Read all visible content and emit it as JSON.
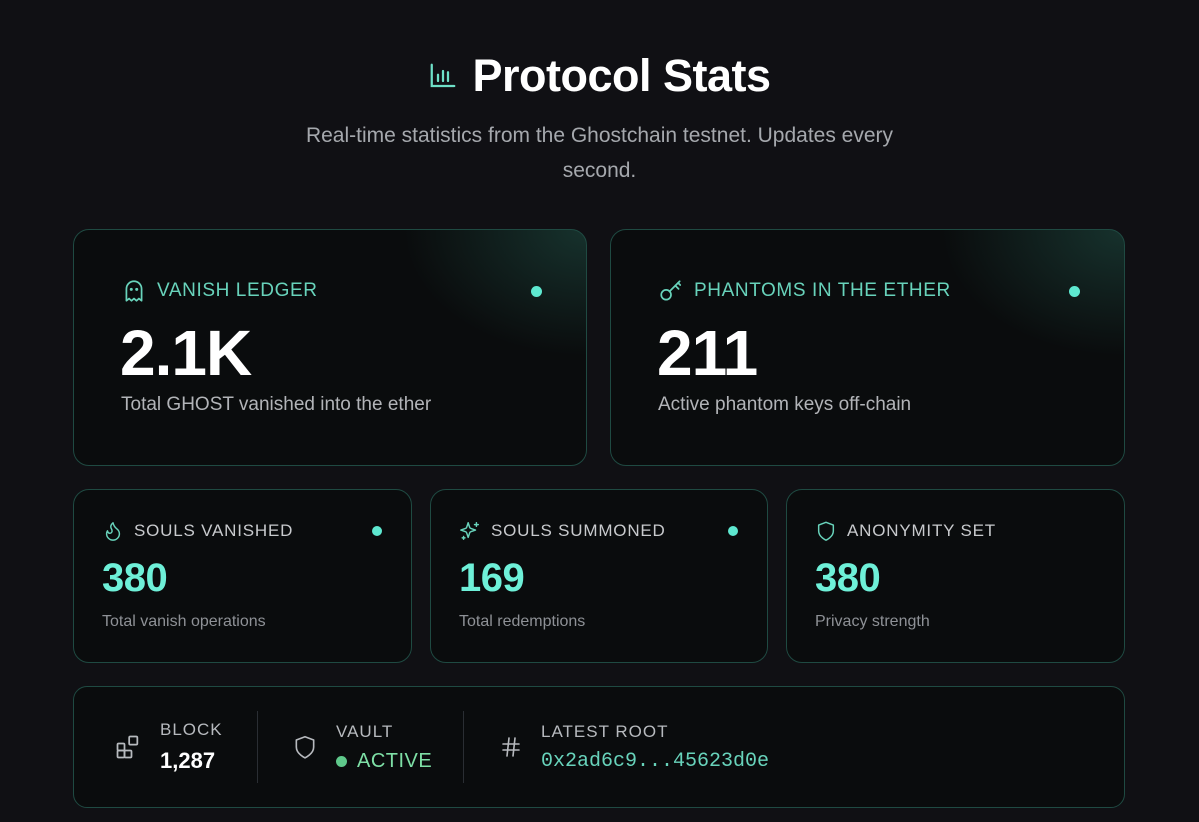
{
  "header": {
    "icon": "bar-chart-icon",
    "title": "Protocol Stats",
    "subtitle": "Real-time statistics from the Ghostchain testnet. Updates every second."
  },
  "primary_cards": [
    {
      "icon": "ghost-icon",
      "label": "VANISH LEDGER",
      "value": "2.1K",
      "description": "Total GHOST vanished into the ether",
      "live_indicator": true
    },
    {
      "icon": "key-icon",
      "label": "PHANTOMS IN THE ETHER",
      "value": "211",
      "description": "Active phantom keys off-chain",
      "live_indicator": true
    }
  ],
  "secondary_cards": [
    {
      "icon": "flame-icon",
      "label": "SOULS VANISHED",
      "value": "380",
      "description": "Total vanish operations",
      "live_indicator": true
    },
    {
      "icon": "sparkles-icon",
      "label": "SOULS SUMMONED",
      "value": "169",
      "description": "Total redemptions",
      "live_indicator": true
    },
    {
      "icon": "shield-icon",
      "label": "ANONYMITY SET",
      "value": "380",
      "description": "Privacy strength",
      "live_indicator": false
    }
  ],
  "status_bar": {
    "block": {
      "icon": "blocks-icon",
      "label": "BLOCK",
      "value": "1,287"
    },
    "vault": {
      "icon": "shield-icon",
      "label": "VAULT",
      "status": "ACTIVE"
    },
    "root": {
      "icon": "hash-icon",
      "label": "LATEST ROOT",
      "value": "0x2ad6c9...45623d0e"
    }
  },
  "colors": {
    "background": "#101014",
    "accent": "#6ef0d8",
    "label_accent": "#68d3bb",
    "card_border": "#1f4a42",
    "active_green": "#5fc98b"
  }
}
